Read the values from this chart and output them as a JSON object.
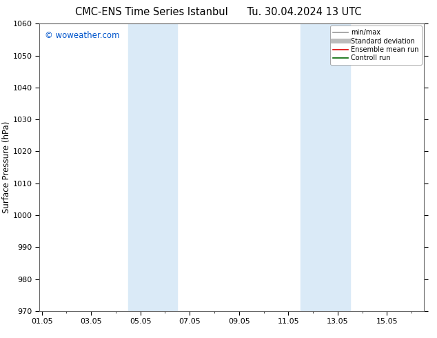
{
  "title": "CMC-ENS Time Series Istanbul      Tu. 30.04.2024 13 UTC",
  "ylabel": "Surface Pressure (hPa)",
  "ylim": [
    970,
    1060
  ],
  "yticks": [
    970,
    980,
    990,
    1000,
    1010,
    1020,
    1030,
    1040,
    1050,
    1060
  ],
  "xtick_labels": [
    "01.05",
    "03.05",
    "05.05",
    "07.05",
    "09.05",
    "11.05",
    "13.05",
    "15.05"
  ],
  "xtick_positions": [
    0,
    2,
    4,
    6,
    8,
    10,
    12,
    14
  ],
  "xlim": [
    -0.1,
    15.5
  ],
  "shade_bands": [
    {
      "xmin": 3.5,
      "xmax": 5.5,
      "color": "#daeaf7"
    },
    {
      "xmin": 10.5,
      "xmax": 12.5,
      "color": "#daeaf7"
    }
  ],
  "watermark": "© woweather.com",
  "watermark_color": "#0055cc",
  "legend_entries": [
    {
      "label": "min/max",
      "color": "#999999",
      "lw": 1.2
    },
    {
      "label": "Standard deviation",
      "color": "#bbbbbb",
      "lw": 5
    },
    {
      "label": "Ensemble mean run",
      "color": "#dd0000",
      "lw": 1.2
    },
    {
      "label": "Controll run",
      "color": "#006600",
      "lw": 1.2
    }
  ],
  "bg_color": "#ffffff",
  "plot_bg_color": "#ffffff",
  "title_fontsize": 10.5,
  "tick_fontsize": 8,
  "ylabel_fontsize": 8.5,
  "legend_fontsize": 7,
  "watermark_fontsize": 8.5
}
